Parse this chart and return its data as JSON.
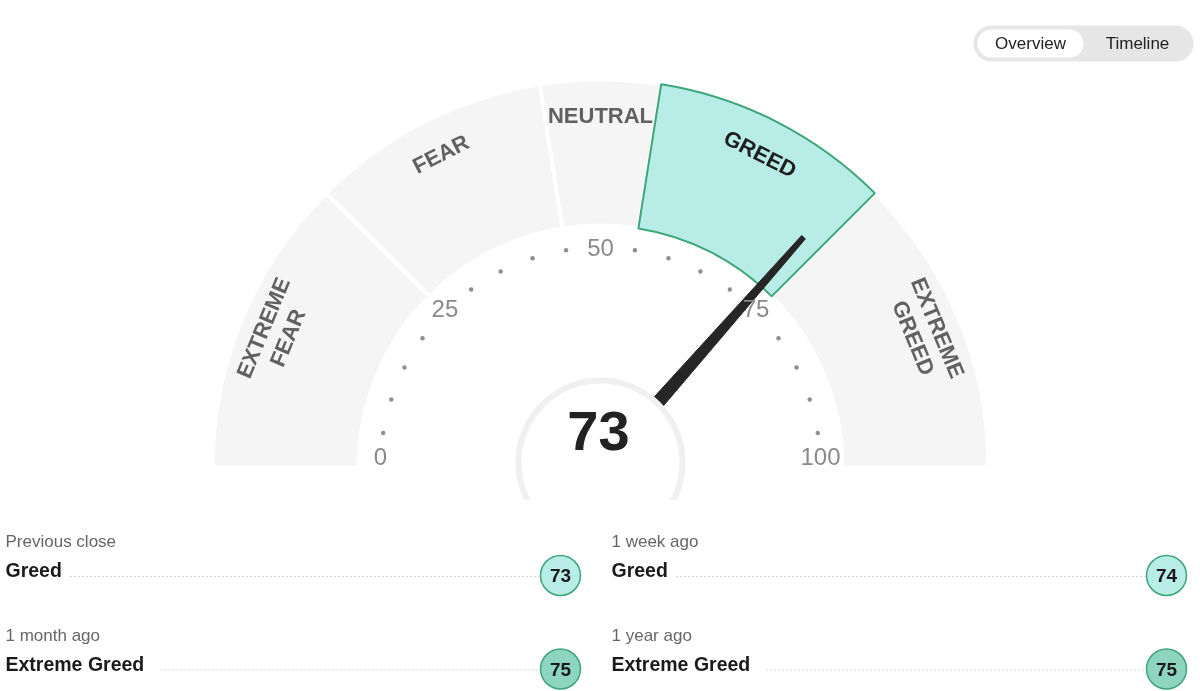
{
  "chart_data": [
    {
      "type": "donut",
      "categories": [
        "EXTREME FEAR",
        "FEAR",
        "NEUTRAL",
        "GREED",
        "EXTREME GREED"
      ],
      "values": [
        25,
        20,
        10,
        20,
        25
      ],
      "colors": [
        "#f5f5f5",
        "#f5f5f5",
        "#f5f5f5",
        "#b8ece6",
        "#f5f5f5"
      ],
      "needle": "GREED",
      "annotations": [
        "Overview",
        "Timeline",
        "73",
        "0",
        "25",
        "50",
        "75",
        "100"
      ]
    },
    {
      "type": "other",
      "colors": [
        "#b8ece6",
        "#b8ece6",
        "#8dd5be",
        "#8dd5be"
      ],
      "annotations": [
        "Previous close",
        "Greed",
        "73",
        "1 week ago",
        "Greed",
        "74",
        "1 month ago",
        "Extreme Greed",
        "75",
        "1 year ago",
        "Extreme Greed",
        "75"
      ]
    }
  ]
}
